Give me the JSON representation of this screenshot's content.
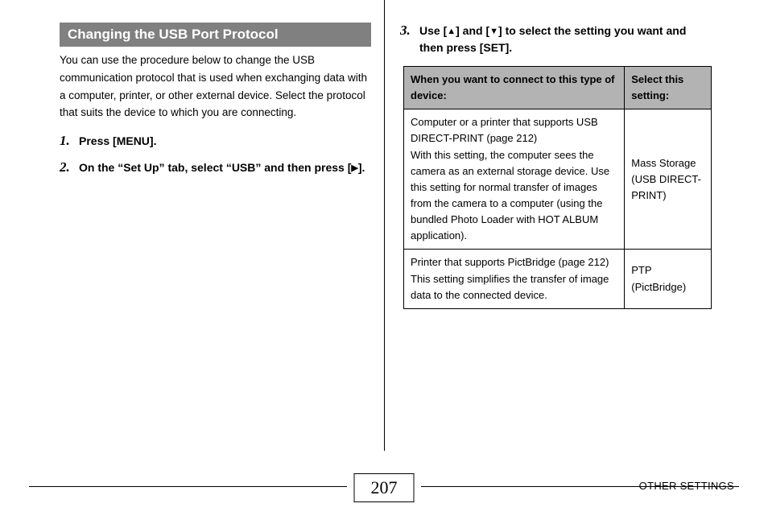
{
  "page": {
    "number": "207",
    "footer_label": "OTHER SETTINGS"
  },
  "section": {
    "title": "Changing the USB Port Protocol",
    "intro": "You can use the procedure below to change the USB communication protocol that is used when exchanging data with a computer, printer, or other external device. Select the protocol that suits the device to which you are connecting."
  },
  "steps": {
    "s1": "Press [MENU].",
    "s2_a": "On the “Set Up” tab, select “USB” and then press [",
    "s2_b": "].",
    "s3_a": "Use [",
    "s3_b": "] and [",
    "s3_c": "] to select the setting you want and then press [SET]."
  },
  "glyphs": {
    "right": "▶",
    "up": "▲",
    "down": "▼"
  },
  "table": {
    "header_device": "When you want to connect to this type of device:",
    "header_setting": "Select this setting:",
    "rows": [
      {
        "device": "Computer or a printer that supports USB DIRECT-PRINT (page 212)\nWith this setting, the computer sees the camera as an external storage device. Use this setting for normal transfer of images from the camera to a computer (using the bundled Photo Loader with HOT ALBUM application).",
        "setting": "Mass Storage (USB DIRECT-PRINT)"
      },
      {
        "device": "Printer that supports PictBridge (page 212)\nThis setting simplifies the transfer of image data to the connected device.",
        "setting": "PTP (PictBridge)"
      }
    ]
  },
  "colors": {
    "header_bg": "#808080",
    "table_header_bg": "#b3b3b3",
    "text": "#000000",
    "bg": "#ffffff"
  }
}
